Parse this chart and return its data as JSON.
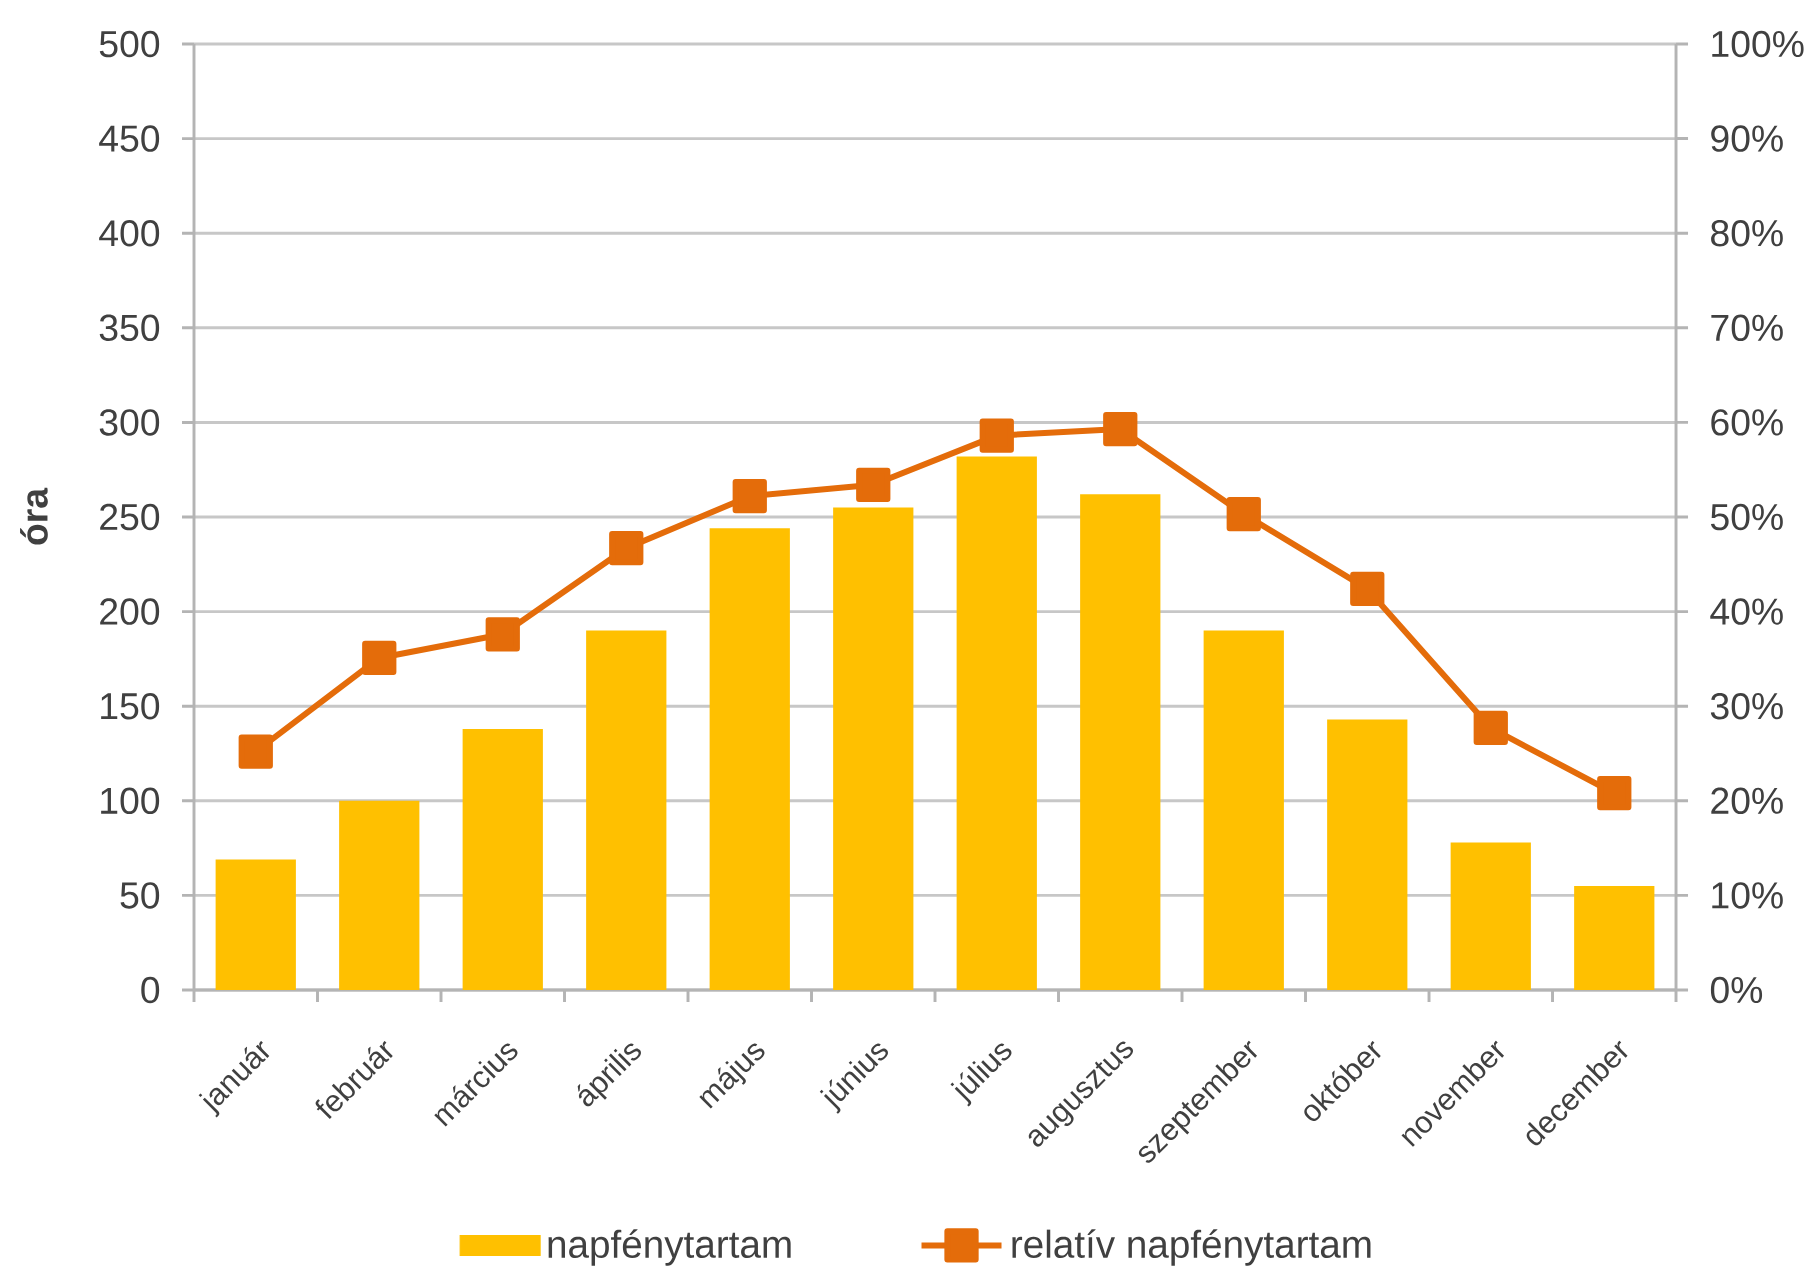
{
  "chart_data": {
    "type": "bar",
    "ylabel": "óra",
    "categories": [
      "január",
      "február",
      "március",
      "április",
      "május",
      "június",
      "július",
      "augusztus",
      "szeptember",
      "október",
      "november",
      "december"
    ],
    "series": [
      {
        "name": "napfénytartam",
        "color": "#ffc000",
        "values": [
          69,
          100,
          138,
          190,
          244,
          255,
          282,
          262,
          190,
          143,
          78,
          55
        ]
      },
      {
        "name": "relatív napfénytartam",
        "type": "line",
        "axis": "y2",
        "color": "#e46c0a",
        "marker": "square",
        "values": [
          25.2,
          35.1,
          37.6,
          46.7,
          52.2,
          53.4,
          58.6,
          59.3,
          50.3,
          42.4,
          27.7,
          20.8
        ]
      }
    ],
    "ylim": [
      0,
      500
    ],
    "yticks": [
      0,
      50,
      100,
      150,
      200,
      250,
      300,
      350,
      400,
      450,
      500
    ],
    "y2lim": [
      0,
      100
    ],
    "y2ticks": [
      {
        "value": 0,
        "label": "0%"
      },
      {
        "value": 10,
        "label": "10%"
      },
      {
        "value": 20,
        "label": "20%"
      },
      {
        "value": 30,
        "label": "30%"
      },
      {
        "value": 40,
        "label": "40%"
      },
      {
        "value": 50,
        "label": "50%"
      },
      {
        "value": 60,
        "label": "60%"
      },
      {
        "value": 70,
        "label": "70%"
      },
      {
        "value": 80,
        "label": "80%"
      },
      {
        "value": 90,
        "label": "90%"
      },
      {
        "value": 100,
        "label": "100%"
      }
    ],
    "grid": "y",
    "legend": "bottom"
  }
}
